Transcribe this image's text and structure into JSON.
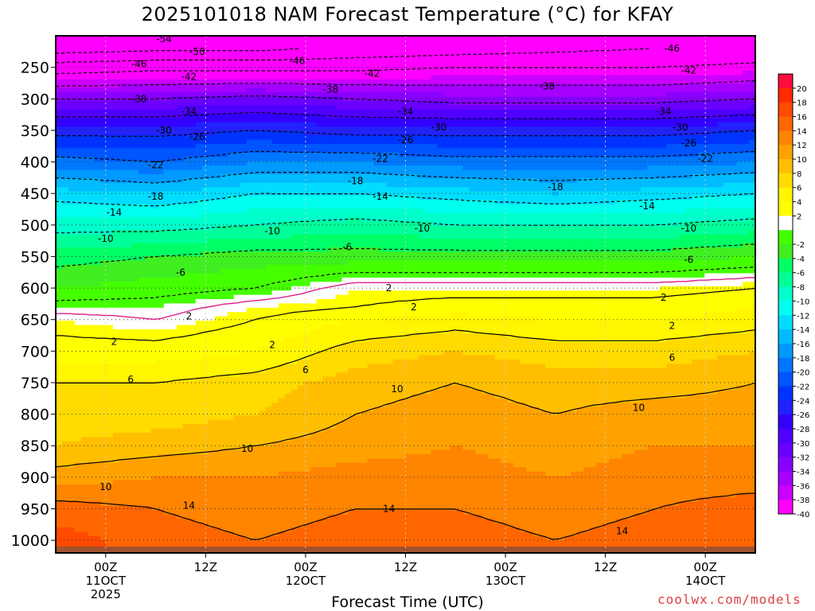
{
  "title": "2025101018 NAM Forecast Temperature (°C) for KFAY",
  "xlabel": "Forecast Time (UTC)",
  "credit": "coolwx.com/models",
  "chart_data": {
    "type": "heatmap",
    "title": "2025101018 NAM Forecast Temperature (°C) for KFAY",
    "xlabel": "Forecast Time (UTC)",
    "ylabel": "",
    "x_ticks": [
      {
        "hour": 6,
        "lines": [
          "00Z",
          "11OCT",
          "2025"
        ]
      },
      {
        "hour": 18,
        "lines": [
          "12Z"
        ]
      },
      {
        "hour": 30,
        "lines": [
          "00Z",
          "12OCT"
        ]
      },
      {
        "hour": 42,
        "lines": [
          "12Z"
        ]
      },
      {
        "hour": 54,
        "lines": [
          "00Z",
          "13OCT"
        ]
      },
      {
        "hour": 66,
        "lines": [
          "12Z"
        ]
      },
      {
        "hour": 78,
        "lines": [
          "00Z",
          "14OCT"
        ]
      }
    ],
    "xlim": [
      0,
      84
    ],
    "y_ticks": [
      250,
      300,
      350,
      400,
      450,
      500,
      550,
      600,
      650,
      700,
      750,
      800,
      850,
      900,
      950,
      1000
    ],
    "ylim": [
      1020,
      200
    ],
    "colorbar_levels": [
      20,
      18,
      16,
      14,
      12,
      10,
      8,
      6,
      4,
      2,
      -2,
      -4,
      -6,
      -8,
      -10,
      -12,
      -14,
      -16,
      -18,
      -20,
      -22,
      -24,
      -26,
      -28,
      -30,
      -32,
      -34,
      -36,
      -38,
      -40
    ],
    "colors": {
      "20": "#ff0d3f",
      "18": "#ff2a00",
      "16": "#ff4a00",
      "14": "#ff6600",
      "12": "#ff8400",
      "10": "#ffa200",
      "8": "#ffbf00",
      "6": "#ffdb00",
      "4": "#fff600",
      "2": "#ffff00",
      "0": "#ffffff",
      "-2": "#44ff00",
      "-4": "#40ee22",
      "-6": "#00ff66",
      "-8": "#00ff99",
      "-10": "#00ffcc",
      "-12": "#00ffee",
      "-14": "#00ddff",
      "-16": "#00bbff",
      "-18": "#0099ff",
      "-20": "#0077ff",
      "-22": "#0055ff",
      "-24": "#0033ff",
      "-26": "#2222ff",
      "-28": "#3300ff",
      "-30": "#5000ff",
      "-32": "#6a00ff",
      "-34": "#8800ff",
      "-36": "#a600ff",
      "-38": "#cc00ff",
      "-40": "#ff00ff",
      "ground": "#a0522d"
    },
    "profiles": [
      {
        "hour": 0,
        "pressure": [
          1000,
          950,
          900,
          850,
          800,
          750,
          700,
          650,
          630,
          600,
          550,
          500,
          450,
          400,
          350,
          300,
          250,
          220
        ],
        "temp": [
          17,
          15,
          11,
          8,
          7,
          6,
          3,
          1,
          -1,
          -4,
          -7,
          -11,
          -15,
          -21,
          -27,
          -34,
          -44,
          -52
        ]
      },
      {
        "hour": 12,
        "pressure": [
          1000,
          950,
          900,
          850,
          800,
          750,
          700,
          650,
          630,
          600,
          550,
          500,
          450,
          400,
          350,
          300,
          250,
          220
        ],
        "temp": [
          15,
          14,
          12,
          9,
          7,
          6,
          3,
          0,
          -1,
          -3,
          -6,
          -11,
          -16,
          -22,
          -27,
          -34,
          -43,
          -51
        ]
      },
      {
        "hour": 24,
        "pressure": [
          1000,
          950,
          900,
          850,
          800,
          750,
          700,
          650,
          630,
          600,
          550,
          500,
          450,
          400,
          350,
          300,
          250,
          220
        ],
        "temp": [
          14,
          13,
          12,
          10,
          8,
          7,
          4,
          2,
          1,
          -2,
          -5,
          -10,
          -14,
          -20,
          -26,
          -33,
          -43,
          -51
        ]
      },
      {
        "hour": 36,
        "pressure": [
          1000,
          950,
          900,
          850,
          800,
          750,
          700,
          650,
          630,
          600,
          550,
          500,
          450,
          400,
          350,
          300,
          250,
          220
        ],
        "temp": [
          15,
          14,
          13,
          11,
          10,
          9,
          7,
          4,
          2,
          1,
          -5,
          -9,
          -14,
          -20,
          -27,
          -34,
          -43,
          -49
        ]
      },
      {
        "hour": 48,
        "pressure": [
          1000,
          950,
          900,
          850,
          800,
          750,
          700,
          650,
          630,
          600,
          550,
          500,
          450,
          400,
          350,
          300,
          250,
          220
        ],
        "temp": [
          15,
          14,
          13,
          12,
          11,
          10,
          8,
          5,
          3,
          1,
          -5,
          -10,
          -15,
          -21,
          -27,
          -35,
          -42,
          -48
        ]
      },
      {
        "hour": 60,
        "pressure": [
          1000,
          950,
          900,
          850,
          800,
          750,
          700,
          650,
          630,
          600,
          550,
          500,
          450,
          400,
          350,
          300,
          250,
          220
        ],
        "temp": [
          14,
          13,
          12,
          11,
          10,
          9,
          7,
          4,
          3,
          1,
          -5,
          -10,
          -16,
          -21,
          -27,
          -35,
          -42,
          -47
        ]
      },
      {
        "hour": 72,
        "pressure": [
          1000,
          950,
          900,
          850,
          800,
          750,
          700,
          650,
          630,
          600,
          550,
          500,
          450,
          400,
          350,
          300,
          250,
          220
        ],
        "temp": [
          15,
          14,
          13,
          12,
          11,
          9,
          7,
          4,
          3,
          1,
          -5,
          -10,
          -15,
          -21,
          -27,
          -35,
          -42,
          -46
        ]
      },
      {
        "hour": 84,
        "pressure": [
          1000,
          950,
          900,
          850,
          800,
          750,
          700,
          650,
          630,
          600,
          550,
          500,
          450,
          400,
          350,
          300,
          250,
          220
        ],
        "temp": [
          16,
          15,
          13,
          12,
          11,
          10,
          8,
          5,
          4,
          2,
          -4,
          -9,
          -14,
          -20,
          -26,
          -34,
          -41,
          -45
        ]
      }
    ],
    "contour_labels": [
      {
        "value": "-54",
        "hour": 13,
        "pressure": 205
      },
      {
        "value": "-50",
        "hour": 17,
        "pressure": 225
      },
      {
        "value": "-46",
        "hour": 10,
        "pressure": 245
      },
      {
        "value": "-42",
        "hour": 16,
        "pressure": 265
      },
      {
        "value": "-46",
        "hour": 29,
        "pressure": 240
      },
      {
        "value": "-42",
        "hour": 38,
        "pressure": 260
      },
      {
        "value": "-38",
        "hour": 33,
        "pressure": 285
      },
      {
        "value": "-38",
        "hour": 10,
        "pressure": 300
      },
      {
        "value": "-34",
        "hour": 16,
        "pressure": 320
      },
      {
        "value": "-30",
        "hour": 13,
        "pressure": 350
      },
      {
        "value": "-26",
        "hour": 17,
        "pressure": 360
      },
      {
        "value": "-22",
        "hour": 12,
        "pressure": 405
      },
      {
        "value": "-18",
        "hour": 12,
        "pressure": 455
      },
      {
        "value": "-14",
        "hour": 7,
        "pressure": 480
      },
      {
        "value": "-10",
        "hour": 6,
        "pressure": 522
      },
      {
        "value": "-6",
        "hour": 15,
        "pressure": 575
      },
      {
        "value": "2",
        "hour": 16,
        "pressure": 645
      },
      {
        "value": "2",
        "hour": 7,
        "pressure": 685
      },
      {
        "value": "6",
        "hour": 9,
        "pressure": 745
      },
      {
        "value": "10",
        "hour": 6,
        "pressure": 915
      },
      {
        "value": "14",
        "hour": 16,
        "pressure": 945
      },
      {
        "value": "10",
        "hour": 23,
        "pressure": 855
      },
      {
        "value": "2",
        "hour": 26,
        "pressure": 690
      },
      {
        "value": "6",
        "hour": 30,
        "pressure": 730
      },
      {
        "value": "-10",
        "hour": 26,
        "pressure": 510
      },
      {
        "value": "-6",
        "hour": 35,
        "pressure": 535
      },
      {
        "value": "-22",
        "hour": 39,
        "pressure": 395
      },
      {
        "value": "-18",
        "hour": 36,
        "pressure": 430
      },
      {
        "value": "-14",
        "hour": 39,
        "pressure": 455
      },
      {
        "value": "-26",
        "hour": 42,
        "pressure": 365
      },
      {
        "value": "-34",
        "hour": 42,
        "pressure": 320
      },
      {
        "value": "-30",
        "hour": 46,
        "pressure": 345
      },
      {
        "value": "-10",
        "hour": 44,
        "pressure": 505
      },
      {
        "value": "2",
        "hour": 40,
        "pressure": 600
      },
      {
        "value": "2",
        "hour": 43,
        "pressure": 630
      },
      {
        "value": "10",
        "hour": 41,
        "pressure": 760
      },
      {
        "value": "14",
        "hour": 40,
        "pressure": 950
      },
      {
        "value": "-38",
        "hour": 59,
        "pressure": 280
      },
      {
        "value": "-46",
        "hour": 74,
        "pressure": 220
      },
      {
        "value": "-42",
        "hour": 76,
        "pressure": 255
      },
      {
        "value": "-34",
        "hour": 73,
        "pressure": 320
      },
      {
        "value": "-30",
        "hour": 75,
        "pressure": 345
      },
      {
        "value": "-26",
        "hour": 76,
        "pressure": 370
      },
      {
        "value": "-22",
        "hour": 78,
        "pressure": 395
      },
      {
        "value": "-18",
        "hour": 60,
        "pressure": 440
      },
      {
        "value": "-14",
        "hour": 71,
        "pressure": 470
      },
      {
        "value": "-10",
        "hour": 76,
        "pressure": 505
      },
      {
        "value": "-6",
        "hour": 76,
        "pressure": 555
      },
      {
        "value": "2",
        "hour": 73,
        "pressure": 615
      },
      {
        "value": "2",
        "hour": 74,
        "pressure": 660
      },
      {
        "value": "6",
        "hour": 74,
        "pressure": 710
      },
      {
        "value": "10",
        "hour": 70,
        "pressure": 790
      },
      {
        "value": "14",
        "hour": 68,
        "pressure": 985
      }
    ]
  }
}
